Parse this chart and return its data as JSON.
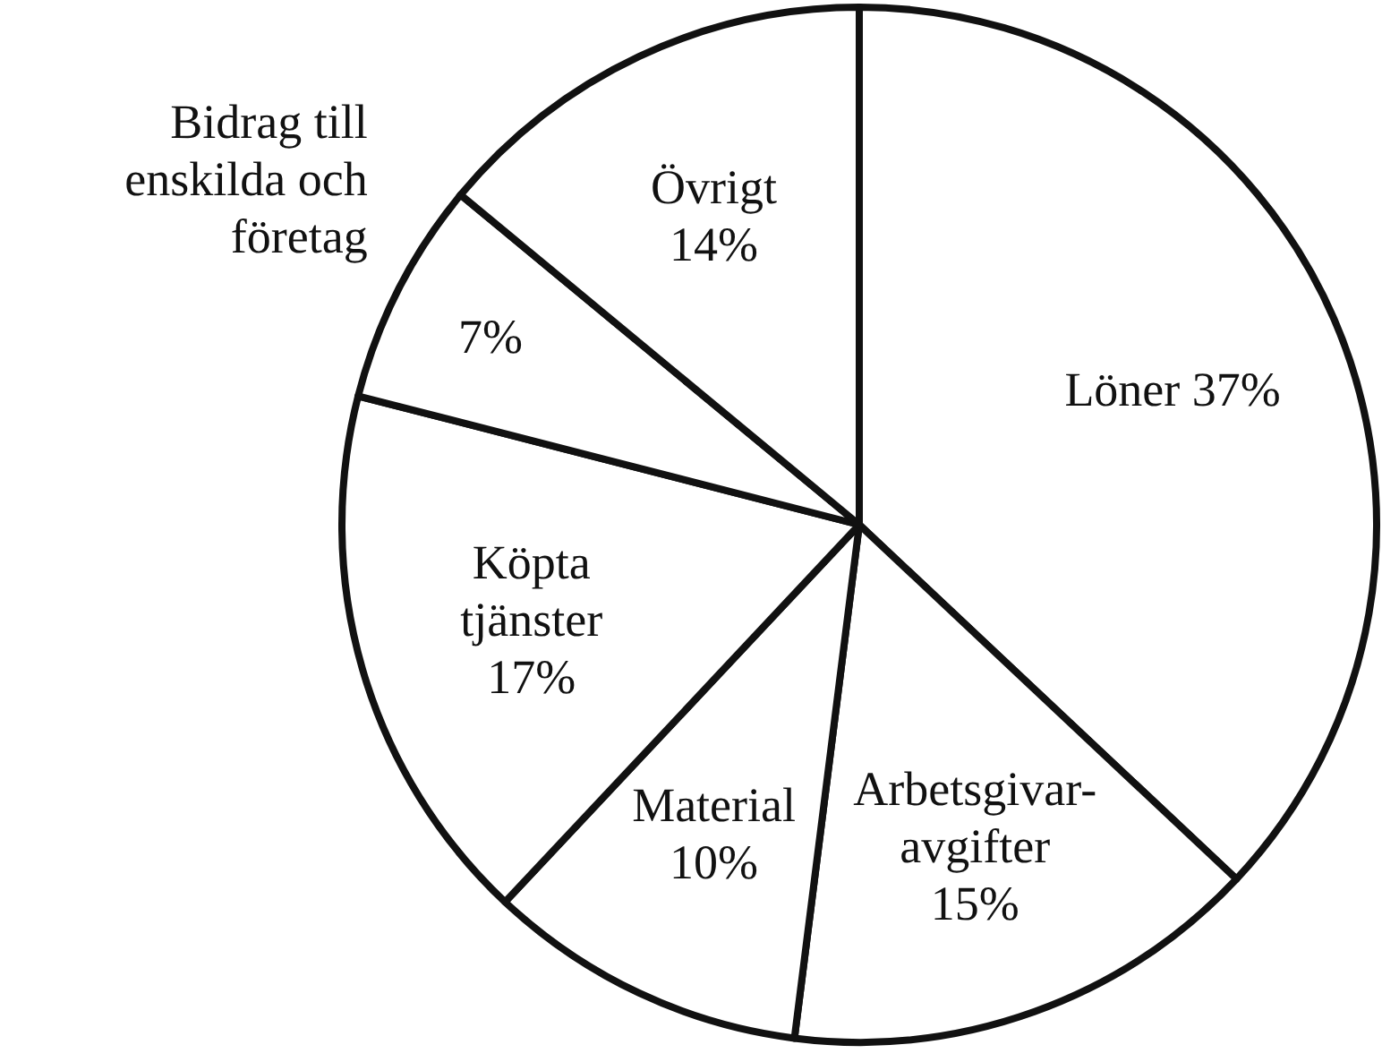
{
  "chart_data": {
    "type": "pie",
    "categories": [
      "Löner",
      "Arbetsgivar-avgifter",
      "Material",
      "Köpta tjänster",
      "Bidrag till enskilda och företag",
      "Övrigt"
    ],
    "values": [
      37,
      15,
      10,
      17,
      7,
      14
    ],
    "value_labels": [
      "37%",
      "15%",
      "10%",
      "17%",
      "7%",
      "14%"
    ],
    "colors": [
      "#ffffff",
      "#ffffff",
      "#ffffff",
      "#ffffff",
      "#ffffff",
      "#ffffff"
    ]
  }
}
